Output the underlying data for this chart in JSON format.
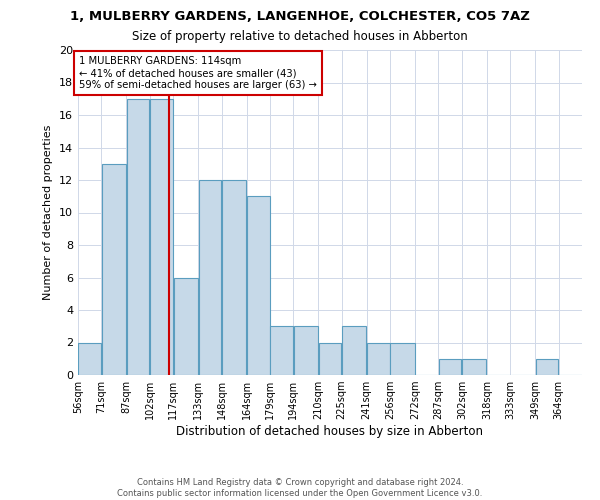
{
  "title": "1, MULBERRY GARDENS, LANGENHOE, COLCHESTER, CO5 7AZ",
  "subtitle": "Size of property relative to detached houses in Abberton",
  "xlabel": "Distribution of detached houses by size in Abberton",
  "ylabel": "Number of detached properties",
  "footnote1": "Contains HM Land Registry data © Crown copyright and database right 2024.",
  "footnote2": "Contains public sector information licensed under the Open Government Licence v3.0.",
  "bar_labels": [
    "56sqm",
    "71sqm",
    "87sqm",
    "102sqm",
    "117sqm",
    "133sqm",
    "148sqm",
    "164sqm",
    "179sqm",
    "194sqm",
    "210sqm",
    "225sqm",
    "241sqm",
    "256sqm",
    "272sqm",
    "287sqm",
    "302sqm",
    "318sqm",
    "333sqm",
    "349sqm",
    "364sqm"
  ],
  "bar_values": [
    2,
    13,
    17,
    17,
    6,
    12,
    12,
    11,
    3,
    3,
    2,
    3,
    2,
    2,
    0,
    1,
    1,
    0,
    0,
    1,
    0
  ],
  "bar_color": "#c6d9e8",
  "bar_edge_color": "#5a9dbf",
  "grid_color": "#d0d8e8",
  "bin_edges": [
    56,
    71,
    87,
    102,
    117,
    133,
    148,
    164,
    179,
    194,
    210,
    225,
    241,
    256,
    272,
    287,
    302,
    318,
    333,
    349,
    364,
    379
  ],
  "property_value": 114,
  "annotation_text_line1": "1 MULBERRY GARDENS: 114sqm",
  "annotation_text_line2": "← 41% of detached houses are smaller (43)",
  "annotation_text_line3": "59% of semi-detached houses are larger (63) →",
  "vline_color": "#cc0000",
  "annotation_box_color": "#cc0000",
  "ylim": [
    0,
    20
  ],
  "yticks": [
    0,
    2,
    4,
    6,
    8,
    10,
    12,
    14,
    16,
    18,
    20
  ]
}
